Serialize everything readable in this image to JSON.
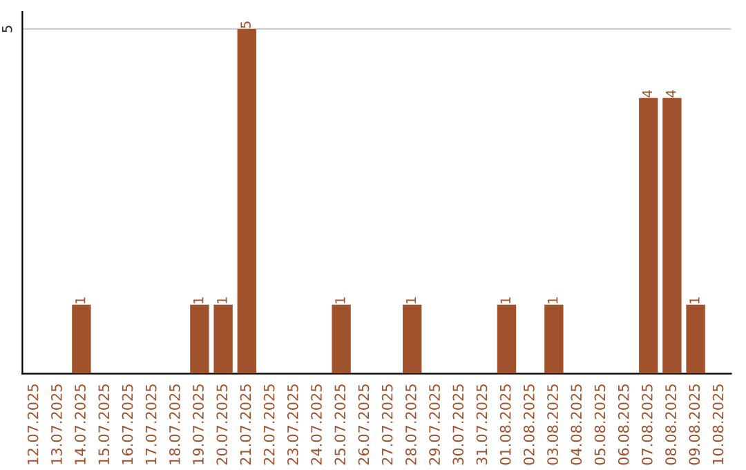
{
  "chart_data": {
    "type": "bar",
    "categories": [
      "12.07.2025",
      "13.07.2025",
      "14.07.2025",
      "15.07.2025",
      "16.07.2025",
      "17.07.2025",
      "18.07.2025",
      "19.07.2025",
      "20.07.2025",
      "21.07.2025",
      "22.07.2025",
      "23.07.2025",
      "24.07.2025",
      "25.07.2025",
      "26.07.2025",
      "27.07.2025",
      "28.07.2025",
      "29.07.2025",
      "30.07.2025",
      "31.07.2025",
      "01.08.2025",
      "02.08.2025",
      "03.08.2025",
      "04.08.2025",
      "05.08.2025",
      "06.08.2025",
      "07.08.2025",
      "08.08.2025",
      "09.08.2025",
      "10.08.2025"
    ],
    "values": [
      0,
      0,
      1,
      0,
      0,
      0,
      0,
      1,
      1,
      5,
      0,
      0,
      0,
      1,
      0,
      0,
      1,
      0,
      0,
      0,
      1,
      0,
      1,
      0,
      0,
      0,
      4,
      4,
      1,
      0
    ],
    "value_labels": [
      null,
      null,
      "1",
      null,
      null,
      null,
      null,
      "1",
      "1",
      "5",
      null,
      null,
      null,
      "1",
      null,
      null,
      "1",
      null,
      null,
      null,
      "1",
      null,
      "1",
      null,
      null,
      null,
      "4",
      "4",
      "1",
      null
    ],
    "color": "#a0522d",
    "ylim": [
      0,
      5.25
    ],
    "yticks": [
      5
    ],
    "grid": "y",
    "legend": false
  }
}
